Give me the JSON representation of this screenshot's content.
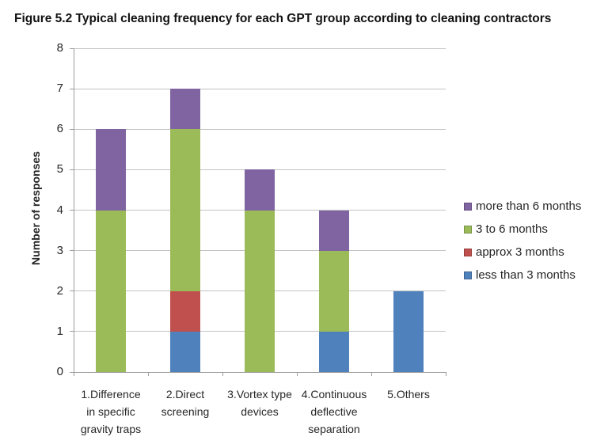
{
  "title": "Figure 5.2 Typical cleaning frequency for each GPT group according to cleaning contractors",
  "chart_data": {
    "type": "bar",
    "stacked": true,
    "title": "Figure 5.2 Typical cleaning frequency for each GPT group according to cleaning contractors",
    "xlabel": "",
    "ylabel": "Number of responses",
    "ylim": [
      0,
      8
    ],
    "ytick_interval": 1,
    "grid": true,
    "legend_position": "right",
    "categories": [
      {
        "label": "1.Difference in specific gravity traps",
        "lines": [
          "1.Difference",
          "in specific",
          "gravity traps"
        ]
      },
      {
        "label": "2.Direct screening",
        "lines": [
          "2.Direct",
          "screening"
        ]
      },
      {
        "label": "3.Vortex type devices",
        "lines": [
          "3.Vortex type",
          "devices"
        ]
      },
      {
        "label": "4.Continuous deflective separation",
        "lines": [
          "4.Continuous",
          "deflective",
          "separation"
        ]
      },
      {
        "label": "5.Others",
        "lines": [
          "5.Others"
        ]
      }
    ],
    "series": [
      {
        "name": "less than 3 months",
        "color": "#4F81BD",
        "values": [
          0,
          1,
          0,
          1,
          2
        ]
      },
      {
        "name": "approx 3 months",
        "color": "#C0504D",
        "values": [
          0,
          1,
          0,
          0,
          0
        ]
      },
      {
        "name": "3 to 6 months",
        "color": "#9BBB59",
        "values": [
          4,
          4,
          4,
          2,
          0
        ]
      },
      {
        "name": "more than 6 months",
        "color": "#8064A2",
        "values": [
          2,
          1,
          1,
          1,
          0
        ]
      }
    ],
    "legend_display_order": [
      3,
      2,
      1,
      0
    ],
    "totals": [
      6,
      7,
      5,
      4,
      2
    ],
    "colors": {
      "gridline": "#C3C3C3",
      "axis": "#9C9C9C",
      "text": "#262626"
    }
  }
}
